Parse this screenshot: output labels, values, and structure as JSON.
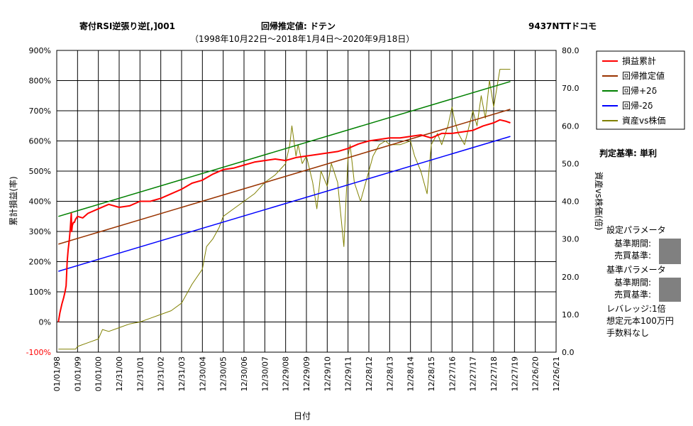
{
  "header": {
    "strategy_title": "寄付RSI逆張り逆[,]001",
    "method_title": "回帰推定値: ドテン",
    "stock_title": "9437NTTドコモ",
    "date_range": "（1998年10月22日～2018年1月4日～2020年9月18日）"
  },
  "judgement": "判定基準: 単利",
  "side_panel": {
    "settings_header": "設定パラメータ",
    "settings_period": "基準期間:",
    "settings_trade": "売買基準:",
    "base_header": "基準パラメータ",
    "base_period": "基準期間:",
    "base_trade": "売買基準:",
    "leverage": "レバレッジ:1倍",
    "capital": "想定元本100万円",
    "fee": "手数料なし"
  },
  "chart_data": {
    "type": "line",
    "xlabel": "日付",
    "ylabel_left": "累計損益(率)",
    "ylabel_right": "資産vs株価(倍)",
    "x_ticks": [
      "01/01/98",
      "01/01/99",
      "01/01/00",
      "12/31/00",
      "12/31/01",
      "12/31/02",
      "12/31/03",
      "12/30/04",
      "12/30/05",
      "12/30/06",
      "12/30/07",
      "12/29/08",
      "12/29/09",
      "12/29/10",
      "12/29/11",
      "12/28/12",
      "12/28/13",
      "12/28/14",
      "12/28/15",
      "12/27/16",
      "12/27/17",
      "12/27/18",
      "12/27/19",
      "12/26/20",
      "12/26/21"
    ],
    "y_left_ticks": [
      "-100%",
      "0%",
      "100%",
      "200%",
      "300%",
      "400%",
      "500%",
      "600%",
      "700%",
      "800%",
      "900%"
    ],
    "y_left_range": [
      -100,
      900
    ],
    "y_right_ticks": [
      "0.0",
      "10.0",
      "20.0",
      "30.0",
      "40.0",
      "50.0",
      "60.0",
      "70.0",
      "80.0"
    ],
    "y_right_range": [
      0,
      80
    ],
    "grid": true,
    "legend_position": "top-right",
    "colors": {
      "cum": "#ff0000",
      "reg": "#993300",
      "upper": "#008000",
      "lower": "#0000ff",
      "asset": "#808000"
    },
    "legend": [
      {
        "key": "cum",
        "label": "損益累計"
      },
      {
        "key": "reg",
        "label": "回帰推定値"
      },
      {
        "key": "upper",
        "label": "回帰+2δ"
      },
      {
        "key": "lower",
        "label": "回帰-2δ"
      },
      {
        "key": "asset",
        "label": "資産vs株価"
      }
    ],
    "series_cumulative_pct": {
      "x": [
        0.08,
        0.15,
        0.25,
        0.33,
        0.4,
        0.45,
        0.5,
        0.55,
        0.6,
        0.65,
        0.7,
        0.72,
        0.75,
        0.8,
        0.85,
        0.9,
        1.0,
        1.25,
        1.5,
        2.0,
        2.5,
        3.0,
        3.5,
        4.0,
        4.5,
        5.0,
        5.5,
        6.0,
        6.5,
        7.0,
        7.5,
        8.0,
        8.5,
        9.0,
        9.5,
        10.0,
        10.5,
        11.0,
        11.5,
        12.0,
        12.5,
        13.0,
        13.5,
        14.0,
        14.5,
        15.0,
        15.5,
        16.0,
        16.5,
        17.0,
        17.5,
        18.0,
        18.5,
        19.0,
        19.5,
        20.0,
        20.5,
        21.0,
        21.3,
        21.6,
        21.8
      ],
      "y": [
        0,
        30,
        60,
        80,
        100,
        120,
        200,
        240,
        270,
        310,
        360,
        300,
        320,
        330,
        330,
        340,
        350,
        345,
        360,
        375,
        390,
        380,
        385,
        400,
        400,
        410,
        425,
        440,
        460,
        470,
        490,
        505,
        510,
        520,
        530,
        535,
        540,
        535,
        545,
        550,
        555,
        560,
        565,
        575,
        590,
        600,
        605,
        610,
        610,
        615,
        620,
        610,
        625,
        625,
        630,
        635,
        650,
        660,
        670,
        665,
        660
      ]
    },
    "series_regression_pct": {
      "x": [
        0.08,
        21.8
      ],
      "y": [
        258,
        705
      ]
    },
    "series_upper_pct": {
      "x": [
        0.08,
        21.8
      ],
      "y": [
        350,
        797
      ]
    },
    "series_lower_pct": {
      "x": [
        0.08,
        21.8
      ],
      "y": [
        168,
        615
      ]
    },
    "series_asset_ratio": {
      "x": [
        0.08,
        0.9,
        1.0,
        1.5,
        2.0,
        2.2,
        2.5,
        3.0,
        3.5,
        4.0,
        4.5,
        5.0,
        5.5,
        6.0,
        6.5,
        7.0,
        7.2,
        7.5,
        7.8,
        8.0,
        8.5,
        9.0,
        9.5,
        10.0,
        10.5,
        11.0,
        11.2,
        11.3,
        11.5,
        11.6,
        11.8,
        12.0,
        12.3,
        12.5,
        12.7,
        13.0,
        13.2,
        13.5,
        13.8,
        14.0,
        14.1,
        14.3,
        14.6,
        15.0,
        15.2,
        15.5,
        15.8,
        16.0,
        16.5,
        17.0,
        17.2,
        17.5,
        17.8,
        18.0,
        18.3,
        18.5,
        18.8,
        19.0,
        19.1,
        19.3,
        19.6,
        20.0,
        20.2,
        20.4,
        20.6,
        20.8,
        21.0,
        21.3,
        21.6,
        21.8
      ],
      "y": [
        0.8,
        0.8,
        1.5,
        2.5,
        3.5,
        6.0,
        5.5,
        6.5,
        7.5,
        8.0,
        9.0,
        10.0,
        11.0,
        13.0,
        18.0,
        22.0,
        28.0,
        30.0,
        33.0,
        36.0,
        38.0,
        40.0,
        42.0,
        45.0,
        47.0,
        50.0,
        55.0,
        60.0,
        52.0,
        55.0,
        50.0,
        52.0,
        45.0,
        38.0,
        48.0,
        44.0,
        50.0,
        45.0,
        28.0,
        52.0,
        55.0,
        45.0,
        40.0,
        48.0,
        52.0,
        55.0,
        56.0,
        55.0,
        55.0,
        56.0,
        52.0,
        48.0,
        42.0,
        55.0,
        58.0,
        55.0,
        60.0,
        65.0,
        62.0,
        58.0,
        55.0,
        64.0,
        60.0,
        68.0,
        62.0,
        72.0,
        65.0,
        75.0,
        75.0,
        75.0
      ]
    }
  }
}
